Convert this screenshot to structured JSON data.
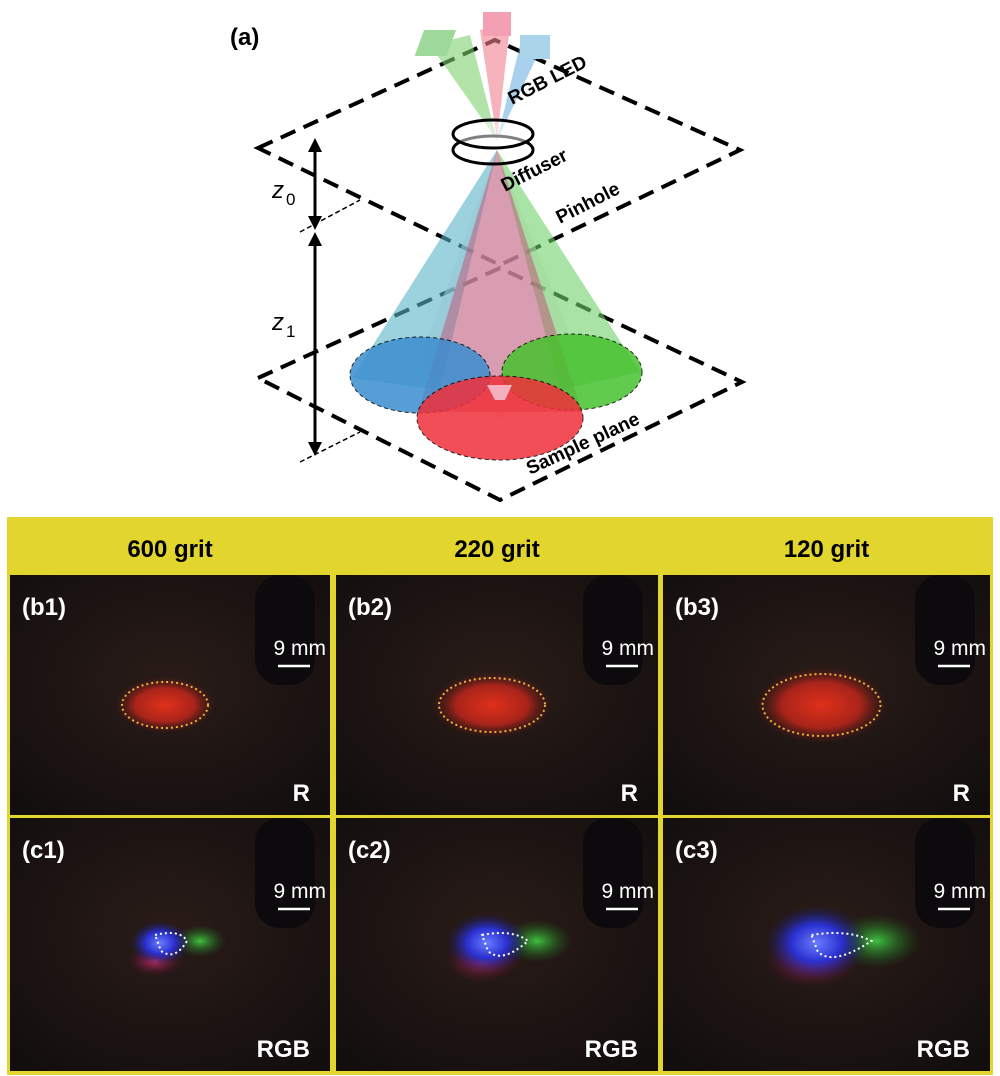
{
  "panel_a": {
    "label": "(a)",
    "rgb_led": "RGB LED",
    "diffuser": "Diffuser",
    "pinhole": "Pinhole",
    "z0": {
      "symbol": "z",
      "subscript": "0"
    },
    "z1": {
      "symbol": "z",
      "subscript": "1"
    },
    "sample_plane": "Sample plane"
  },
  "grid": {
    "columns": [
      "600 grit",
      "220 grit",
      "120 grit"
    ],
    "rows": [
      {
        "panels": [
          {
            "label": "(b1)",
            "scale": "9 mm",
            "channel": "R"
          },
          {
            "label": "(b2)",
            "scale": "9 mm",
            "channel": "R"
          },
          {
            "label": "(b3)",
            "scale": "9 mm",
            "channel": "R"
          }
        ]
      },
      {
        "panels": [
          {
            "label": "(c1)",
            "scale": "9 mm",
            "channel": "RGB"
          },
          {
            "label": "(c2)",
            "scale": "9 mm",
            "channel": "RGB"
          },
          {
            "label": "(c3)",
            "scale": "9 mm",
            "channel": "RGB"
          }
        ]
      }
    ]
  }
}
